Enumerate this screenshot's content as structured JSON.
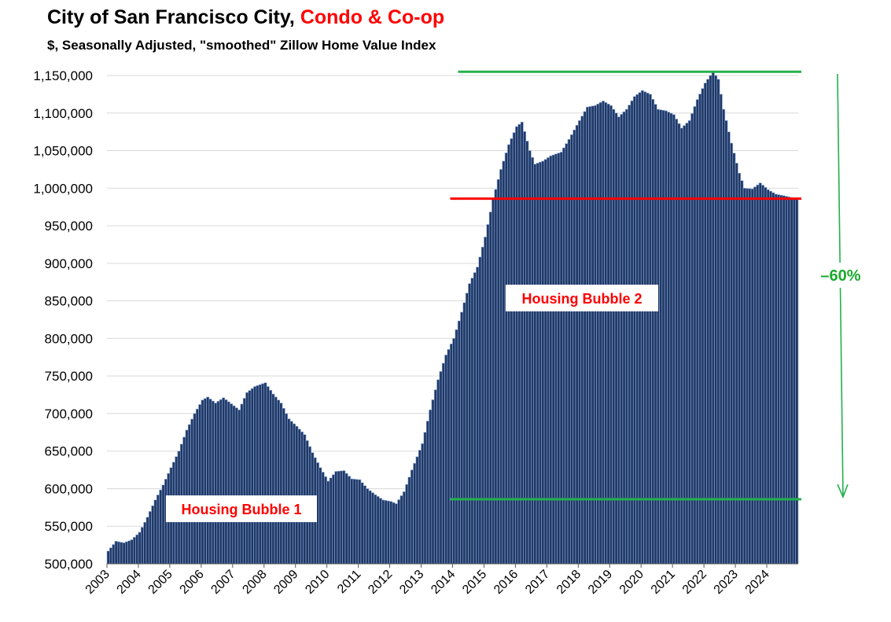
{
  "title_main": "City of San Francisco City, ",
  "title_accent": "Condo & Co-op",
  "subtitle": "$, Seasonally Adjusted, \"smoothed\" Zillow Home Value Index",
  "colors": {
    "bar": "#1f3864",
    "bar_edge": "#8ea9db",
    "grid": "#d9d9d9",
    "red_line": "#ff0000",
    "green_line": "#22b14c",
    "annot_red": "#ff0000",
    "annot_green": "#1aaa2c"
  },
  "chart_data": {
    "type": "bar",
    "ylim": [
      500000,
      1150000
    ],
    "y_ticks": [
      "500,000",
      "550,000",
      "600,000",
      "650,000",
      "700,000",
      "750,000",
      "800,000",
      "850,000",
      "900,000",
      "950,000",
      "1,000,000",
      "1,050,000",
      "1,100,000",
      "1,150,000"
    ],
    "x_ticks": [
      "2003",
      "2004",
      "2005",
      "2006",
      "2007",
      "2008",
      "2009",
      "2010",
      "2011",
      "2012",
      "2013",
      "2014",
      "2015",
      "2016",
      "2017",
      "2018",
      "2019",
      "2020",
      "2021",
      "2022",
      "2023",
      "2024"
    ],
    "grid": "horizontal",
    "start_year": 2003,
    "frequency": "monthly",
    "anchors": [
      [
        "2003-01",
        517000
      ],
      [
        "2003-04",
        530000
      ],
      [
        "2003-07",
        528000
      ],
      [
        "2003-10",
        532000
      ],
      [
        "2004-01",
        542000
      ],
      [
        "2004-04",
        562000
      ],
      [
        "2004-07",
        585000
      ],
      [
        "2004-10",
        605000
      ],
      [
        "2005-01",
        628000
      ],
      [
        "2005-04",
        650000
      ],
      [
        "2005-07",
        678000
      ],
      [
        "2005-10",
        700000
      ],
      [
        "2006-01",
        718000
      ],
      [
        "2006-03",
        722000
      ],
      [
        "2006-06",
        714000
      ],
      [
        "2006-09",
        721000
      ],
      [
        "2006-12",
        713000
      ],
      [
        "2007-03",
        705000
      ],
      [
        "2007-06",
        728000
      ],
      [
        "2007-09",
        736000
      ],
      [
        "2008-01",
        741000
      ],
      [
        "2008-04",
        726000
      ],
      [
        "2008-07",
        714000
      ],
      [
        "2008-10",
        693000
      ],
      [
        "2009-01",
        683000
      ],
      [
        "2009-04",
        672000
      ],
      [
        "2009-07",
        648000
      ],
      [
        "2009-10",
        628000
      ],
      [
        "2010-01",
        610000
      ],
      [
        "2010-04",
        623000
      ],
      [
        "2010-07",
        624000
      ],
      [
        "2010-10",
        613000
      ],
      [
        "2011-01",
        612000
      ],
      [
        "2011-04",
        600000
      ],
      [
        "2011-07",
        592000
      ],
      [
        "2011-10",
        585000
      ],
      [
        "2012-01",
        583000
      ],
      [
        "2012-03",
        580000
      ],
      [
        "2012-06",
        596000
      ],
      [
        "2012-09",
        625000
      ],
      [
        "2013-01",
        660000
      ],
      [
        "2013-04",
        705000
      ],
      [
        "2013-07",
        745000
      ],
      [
        "2013-10",
        778000
      ],
      [
        "2014-01",
        800000
      ],
      [
        "2014-04",
        835000
      ],
      [
        "2014-07",
        873000
      ],
      [
        "2014-10",
        895000
      ],
      [
        "2015-01",
        935000
      ],
      [
        "2015-04",
        985000
      ],
      [
        "2015-07",
        1025000
      ],
      [
        "2015-10",
        1058000
      ],
      [
        "2016-01",
        1082000
      ],
      [
        "2016-03",
        1088000
      ],
      [
        "2016-06",
        1050000
      ],
      [
        "2016-08",
        1032000
      ],
      [
        "2016-11",
        1036000
      ],
      [
        "2017-02",
        1043000
      ],
      [
        "2017-06",
        1048000
      ],
      [
        "2017-09",
        1065000
      ],
      [
        "2018-01",
        1090000
      ],
      [
        "2018-04",
        1108000
      ],
      [
        "2018-07",
        1110000
      ],
      [
        "2018-10",
        1116000
      ],
      [
        "2019-01",
        1110000
      ],
      [
        "2019-04",
        1095000
      ],
      [
        "2019-07",
        1105000
      ],
      [
        "2019-10",
        1122000
      ],
      [
        "2020-01",
        1130000
      ],
      [
        "2020-04",
        1125000
      ],
      [
        "2020-07",
        1105000
      ],
      [
        "2020-10",
        1103000
      ],
      [
        "2021-01",
        1098000
      ],
      [
        "2021-04",
        1080000
      ],
      [
        "2021-07",
        1090000
      ],
      [
        "2021-10",
        1118000
      ],
      [
        "2022-01",
        1140000
      ],
      [
        "2022-04",
        1155000
      ],
      [
        "2022-06",
        1145000
      ],
      [
        "2022-08",
        1105000
      ],
      [
        "2022-11",
        1060000
      ],
      [
        "2023-02",
        1020000
      ],
      [
        "2023-04",
        1000000
      ],
      [
        "2023-07",
        999000
      ],
      [
        "2023-10",
        1007000
      ],
      [
        "2024-01",
        998000
      ],
      [
        "2024-04",
        992000
      ],
      [
        "2024-07",
        990000
      ],
      [
        "2024-12",
        986000
      ]
    ],
    "reference_lines": [
      {
        "color": "green",
        "value": 1155000,
        "from": "2014-04",
        "to": "2024-12"
      },
      {
        "color": "red",
        "value": 986000,
        "from": "2014-01",
        "to": "2024-12"
      },
      {
        "color": "green",
        "value": 586000,
        "from": "2014-01",
        "to": "2024-12"
      }
    ],
    "annotations": [
      {
        "text": "Housing Bubble 2"
      },
      {
        "text": "Housing Bubble 1"
      },
      {
        "text": "–60%"
      }
    ]
  }
}
